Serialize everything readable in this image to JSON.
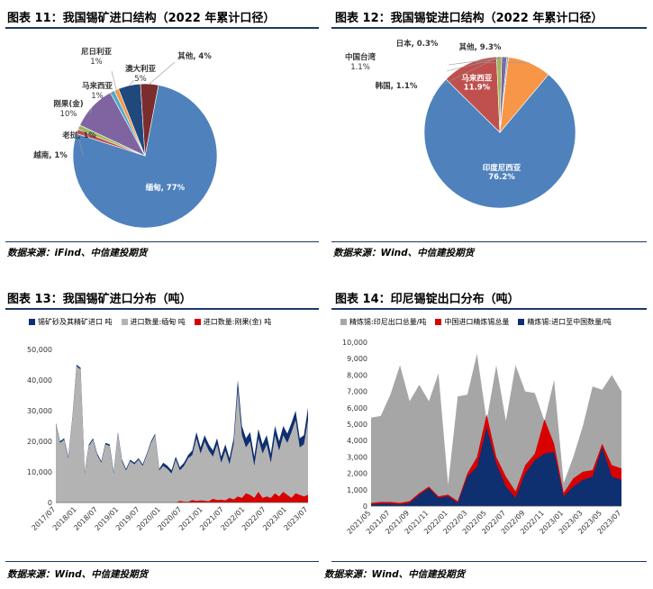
{
  "panels": {
    "p11": {
      "title": "图表 11：我国锡矿进口结构（2022 年累计口径）",
      "source": "数据来源：iFind、中信建投期货"
    },
    "p12": {
      "title": "图表 12：我国锡锭进口结构（2022 年累计口径）",
      "source": "数据来源：Wind、中信建投期货"
    },
    "p13": {
      "title": "图表 13：我国锡矿进口分布（吨）",
      "source": "数据来源：Wind、中信建投期货"
    },
    "p14": {
      "title": "图表 14：印尼锡锭出口分布（吨）",
      "source": "数据来源：Wind、中信建投期货"
    }
  },
  "chart_data": [
    {
      "id": "pie11",
      "type": "pie",
      "slices": [
        {
          "label": "缅甸",
          "value_label": "77%",
          "value": 77,
          "color": "#4f81bd"
        },
        {
          "label": "越南",
          "value_label": "1%",
          "value": 1,
          "color": "#c0504d"
        },
        {
          "label": "老挝",
          "value_label": "1%",
          "value": 1,
          "color": "#9bbb59"
        },
        {
          "label": "刚果(金)",
          "value_label": "10%",
          "value": 10,
          "color": "#8064a2"
        },
        {
          "label": "马来西亚",
          "value_label": "1%",
          "value": 1,
          "color": "#4bacc6"
        },
        {
          "label": "尼日利亚",
          "value_label": "1%",
          "value": 1,
          "color": "#f79646"
        },
        {
          "label": "澳大利亚",
          "value_label": "5%",
          "value": 5,
          "color": "#1f497d"
        },
        {
          "label": "其他",
          "value_label": "4%",
          "value": 4,
          "color": "#7b2c2c"
        }
      ]
    },
    {
      "id": "pie12",
      "type": "pie",
      "slices": [
        {
          "label": "印度尼西亚",
          "value_label": "76.2%",
          "value": 76.2,
          "color": "#4f81bd"
        },
        {
          "label": "马来西亚",
          "value_label": "11.9%",
          "value": 11.9,
          "color": "#c0504d"
        },
        {
          "label": "韩国",
          "value_label": "1.1%",
          "value": 1.1,
          "color": "#9bbb59"
        },
        {
          "label": "中国台湾",
          "value_label": "1.1%",
          "value": 1.1,
          "color": "#8064a2"
        },
        {
          "label": "日本",
          "value_label": "0.3%",
          "value": 0.3,
          "color": "#4bacc6"
        },
        {
          "label": "其他",
          "value_label": "9.3%",
          "value": 9.3,
          "color": "#f79646"
        }
      ]
    },
    {
      "id": "area13",
      "type": "area",
      "legend": [
        "锡矿砂及其精矿进口 吨",
        "进口数量:缅甸 吨",
        "进口数量:刚果(金) 吨"
      ],
      "colors": [
        "#0e2f70",
        "#b3b3b3",
        "#d90000"
      ],
      "ylim": [
        0,
        50000
      ],
      "yticks": [
        "0",
        "10,000",
        "20,000",
        "30,000",
        "40,000",
        "50,000"
      ],
      "xticks": [
        "2017/07",
        "2018/01",
        "2018/07",
        "2019/01",
        "2019/07",
        "2020/01",
        "2020/07",
        "2021/01",
        "2021/07",
        "2022/01",
        "2022/07",
        "2023/01",
        "2023/07"
      ],
      "series": [
        {
          "name": "锡矿砂及其精矿进口 吨",
          "values": [
            26000,
            20000,
            21000,
            15000,
            28000,
            45000,
            44000,
            10000,
            19000,
            21000,
            16000,
            13500,
            19500,
            19000,
            10000,
            23000,
            14000,
            11000,
            14000,
            13000,
            14500,
            12500,
            16000,
            20000,
            22500,
            11000,
            13000,
            12000,
            10500,
            15000,
            11500,
            13000,
            15500,
            17000,
            23000,
            18000,
            22000,
            19000,
            17000,
            21000,
            15000,
            19000,
            14500,
            21000,
            40000,
            25000,
            21000,
            23000,
            15000,
            24000,
            19000,
            22000,
            16000,
            25000,
            20000,
            25000,
            22500,
            26000,
            30000,
            21000,
            22000,
            31000
          ]
        },
        {
          "name": "进口数量:缅甸 吨",
          "values": [
            25500,
            19500,
            20500,
            14500,
            27500,
            44500,
            43500,
            9500,
            18500,
            20500,
            15500,
            13000,
            19000,
            18500,
            9500,
            22500,
            13500,
            10500,
            13500,
            12500,
            14000,
            12000,
            15500,
            19500,
            22000,
            10500,
            12000,
            11000,
            9500,
            14000,
            10500,
            12000,
            14500,
            15500,
            21000,
            16000,
            20000,
            17000,
            15000,
            19000,
            13000,
            17000,
            12500,
            19000,
            37000,
            22000,
            18000,
            20000,
            12000,
            21000,
            16000,
            19000,
            13000,
            22000,
            17000,
            22000,
            19500,
            23000,
            27000,
            18000,
            19000,
            27000
          ]
        },
        {
          "name": "进口数量:刚果(金) 吨",
          "values": [
            0,
            0,
            0,
            0,
            0,
            0,
            0,
            0,
            0,
            0,
            0,
            0,
            0,
            0,
            0,
            0,
            0,
            0,
            0,
            0,
            0,
            0,
            0,
            0,
            0,
            0,
            0,
            0,
            0,
            0,
            500,
            300,
            200,
            800,
            500,
            700,
            600,
            400,
            1200,
            800,
            900,
            700,
            1500,
            1000,
            2000,
            1500,
            3000,
            2500,
            1500,
            3500,
            1500,
            2000,
            1500,
            3000,
            2000,
            3500,
            2500,
            1500,
            3000,
            2500,
            2000,
            2500
          ]
        }
      ]
    },
    {
      "id": "area14",
      "type": "area",
      "legend": [
        "精炼锡:印尼出口总量/吨",
        "中国进口精炼锡总量",
        "精炼锡:进口至中国数量/吨"
      ],
      "colors": [
        "#a6a6a6",
        "#d90000",
        "#0e2f70"
      ],
      "ylim": [
        0,
        10000
      ],
      "yticks": [
        "0",
        "1,000",
        "2,000",
        "3,000",
        "4,000",
        "5,000",
        "6,000",
        "7,000",
        "8,000",
        "9,000",
        "10,000"
      ],
      "xticks": [
        "2021/05",
        "2021/07",
        "2021/09",
        "2021/11",
        "2022/01",
        "2022/03",
        "2022/05",
        "2022/07",
        "2022/09",
        "2022/11",
        "2023/01",
        "2023/03",
        "2023/05",
        "2023/07"
      ],
      "series": [
        {
          "name": "精炼锡:印尼出口总量/吨",
          "values": [
            5400,
            5500,
            6800,
            8600,
            6400,
            7400,
            6400,
            8100,
            1300,
            6700,
            6800,
            9300,
            5200,
            8600,
            5200,
            8600,
            7000,
            6900,
            5200,
            7700,
            1400,
            3000,
            4900,
            7300,
            7100,
            8000,
            7000
          ]
        },
        {
          "name": "中国进口精炼锡总量",
          "values": [
            200,
            250,
            250,
            200,
            300,
            800,
            1200,
            600,
            700,
            300,
            2000,
            3000,
            5600,
            3000,
            1800,
            900,
            2500,
            3200,
            5300,
            3800,
            800,
            1700,
            2100,
            2200,
            3800,
            2500,
            2300
          ]
        },
        {
          "name": "精炼锡:进口至中国数量/吨",
          "values": [
            100,
            150,
            150,
            100,
            200,
            700,
            1100,
            500,
            600,
            200,
            1800,
            2400,
            4800,
            2600,
            1200,
            500,
            2000,
            2800,
            3200,
            3300,
            600,
            1200,
            1600,
            1800,
            3600,
            1800,
            1600
          ]
        }
      ]
    }
  ]
}
